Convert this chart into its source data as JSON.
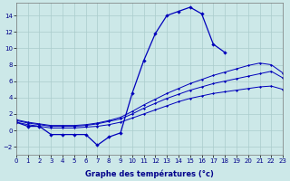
{
  "xlabel": "Graphe des températures (°c)",
  "background_color": "#cce8e8",
  "grid_color": "#aacccc",
  "line_color": "#0000bb",
  "ylim": [
    -3,
    15.5
  ],
  "yticks": [
    -2,
    0,
    2,
    4,
    6,
    8,
    10,
    12,
    14
  ],
  "xlim": [
    0,
    23
  ],
  "xticks": [
    0,
    1,
    2,
    3,
    4,
    5,
    6,
    7,
    8,
    9,
    10,
    11,
    12,
    13,
    14,
    15,
    16,
    17,
    18,
    19,
    20,
    21,
    22,
    23
  ],
  "tick_fontsize": 5.0,
  "xlabel_fontsize": 6.0,
  "line1_x": [
    0,
    1,
    2,
    3,
    4,
    5,
    6,
    7,
    8,
    9,
    10,
    11,
    12,
    13,
    14,
    15,
    16,
    17,
    18,
    19,
    20,
    21,
    22,
    23
  ],
  "line1_y": [
    1.0,
    0.7,
    0.5,
    0.3,
    0.3,
    0.3,
    0.4,
    0.5,
    0.7,
    1.0,
    1.5,
    2.0,
    2.5,
    3.0,
    3.5,
    3.9,
    4.2,
    4.5,
    4.7,
    4.9,
    5.1,
    5.3,
    5.4,
    5.0
  ],
  "line2_x": [
    0,
    1,
    2,
    3,
    4,
    5,
    6,
    7,
    8,
    9,
    10,
    11,
    12,
    13,
    14,
    15,
    16,
    17,
    18,
    19,
    20,
    21,
    22,
    23
  ],
  "line2_y": [
    1.2,
    0.9,
    0.7,
    0.5,
    0.5,
    0.5,
    0.6,
    0.8,
    1.1,
    1.4,
    2.0,
    2.7,
    3.3,
    3.9,
    4.4,
    4.9,
    5.3,
    5.7,
    6.0,
    6.3,
    6.6,
    6.9,
    7.2,
    6.4
  ],
  "line3_x": [
    0,
    1,
    2,
    3,
    4,
    5,
    6,
    7,
    8,
    9,
    10,
    11,
    12,
    13,
    14,
    15,
    16,
    17,
    18,
    19,
    20,
    21,
    22,
    23
  ],
  "line3_y": [
    1.3,
    1.0,
    0.8,
    0.6,
    0.6,
    0.6,
    0.7,
    0.9,
    1.2,
    1.6,
    2.3,
    3.1,
    3.8,
    4.5,
    5.1,
    5.7,
    6.2,
    6.7,
    7.1,
    7.5,
    7.9,
    8.2,
    8.0,
    7.0
  ],
  "main_x": [
    0,
    1,
    2,
    3,
    4,
    5,
    6,
    7,
    8,
    9,
    10,
    11,
    12,
    13,
    14,
    15,
    16,
    17,
    18
  ],
  "main_y": [
    1.0,
    0.5,
    0.5,
    -0.5,
    -0.5,
    -0.5,
    -0.5,
    -1.8,
    -0.8,
    -0.3,
    4.5,
    8.5,
    11.8,
    14.0,
    14.5,
    15.0,
    14.2,
    10.5,
    9.5
  ]
}
